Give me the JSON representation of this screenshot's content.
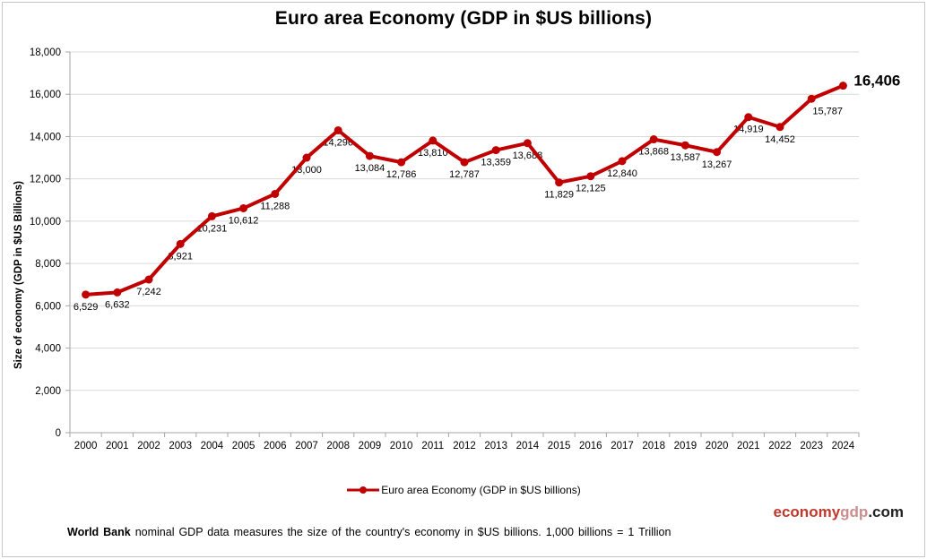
{
  "chart_data": {
    "type": "line",
    "title": "Euro area Economy (GDP in $US billions)",
    "ylabel": "Size of economy (GDP in $US Billions)",
    "x": [
      2000,
      2001,
      2002,
      2003,
      2004,
      2005,
      2006,
      2007,
      2008,
      2009,
      2010,
      2011,
      2012,
      2013,
      2014,
      2015,
      2016,
      2017,
      2018,
      2019,
      2020,
      2021,
      2022,
      2023,
      2024
    ],
    "series": [
      {
        "name": "Euro area Economy (GDP in $US billions)",
        "values": [
          6529,
          6632,
          7242,
          8921,
          10231,
          10612,
          11288,
          13000,
          14296,
          13084,
          12786,
          13810,
          12787,
          13359,
          13688,
          11829,
          12125,
          12840,
          13868,
          13587,
          13267,
          14919,
          14452,
          15787,
          16406
        ],
        "color": "#C00000"
      }
    ],
    "ylim": [
      0,
      18000
    ],
    "ytick_step": 2000,
    "grid": true,
    "gridline_color": "#D9D9D9",
    "axis_color": "#A6A6A6",
    "data_label_color": "#000000",
    "legend_position": "bottom",
    "label_overrides": {
      "2023": {
        "dx": 18,
        "dy": 0
      },
      "2024": {
        "dx": 12,
        "dy": -17,
        "bold": true,
        "size": 17,
        "anchor": "start"
      }
    }
  },
  "legend": {
    "label": "Euro area Economy (GDP in $US billions)",
    "marker_color": "#C00000"
  },
  "branding": {
    "part1": "economy",
    "part2": "gdp",
    "part3": ".com",
    "color1": "#C0392B",
    "color2": "#CC8E8E",
    "color3": "#222222"
  },
  "footer": {
    "bold": "World Bank",
    "text": " nominal GDP data  measures the size of the country's economy in $US billions. 1,000 billions = 1 Trillion"
  }
}
